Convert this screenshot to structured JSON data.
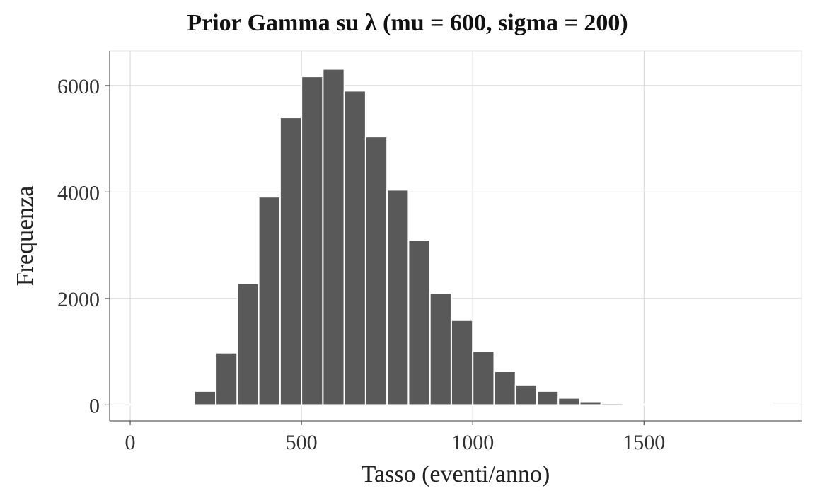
{
  "chart_data": {
    "type": "bar",
    "title": "Prior Gamma su λ (mu = 600, sigma = 200)",
    "xlabel": "Tasso (eventi/anno)",
    "ylabel": "Frequenza",
    "bin_width": 62.5,
    "bins": [
      {
        "x0": 0,
        "x1": 62.5,
        "value": 0
      },
      {
        "x0": 62.5,
        "x1": 125,
        "value": 0
      },
      {
        "x0": 125,
        "x1": 187.5,
        "value": 0
      },
      {
        "x0": 187.5,
        "x1": 250,
        "value": 260
      },
      {
        "x0": 250,
        "x1": 312.5,
        "value": 980
      },
      {
        "x0": 312.5,
        "x1": 375,
        "value": 2280
      },
      {
        "x0": 375,
        "x1": 437.5,
        "value": 3910
      },
      {
        "x0": 437.5,
        "x1": 500,
        "value": 5400
      },
      {
        "x0": 500,
        "x1": 562.5,
        "value": 6170
      },
      {
        "x0": 562.5,
        "x1": 625,
        "value": 6310
      },
      {
        "x0": 625,
        "x1": 687.5,
        "value": 5900
      },
      {
        "x0": 687.5,
        "x1": 750,
        "value": 5040
      },
      {
        "x0": 750,
        "x1": 812.5,
        "value": 4040
      },
      {
        "x0": 812.5,
        "x1": 875,
        "value": 3100
      },
      {
        "x0": 875,
        "x1": 937.5,
        "value": 2100
      },
      {
        "x0": 937.5,
        "x1": 1000,
        "value": 1590
      },
      {
        "x0": 1000,
        "x1": 1062.5,
        "value": 1010
      },
      {
        "x0": 1062.5,
        "x1": 1125,
        "value": 630
      },
      {
        "x0": 1125,
        "x1": 1187.5,
        "value": 380
      },
      {
        "x0": 1187.5,
        "x1": 1250,
        "value": 260
      },
      {
        "x0": 1250,
        "x1": 1312.5,
        "value": 130
      },
      {
        "x0": 1312.5,
        "x1": 1375,
        "value": 65
      },
      {
        "x0": 1375,
        "x1": 1437.5,
        "value": 30
      },
      {
        "x0": 1437.5,
        "x1": 1500,
        "value": 10
      },
      {
        "x0": 1500,
        "x1": 1562.5,
        "value": 5
      },
      {
        "x0": 1562.5,
        "x1": 1625,
        "value": 3
      },
      {
        "x0": 1625,
        "x1": 1687.5,
        "value": 2
      },
      {
        "x0": 1687.5,
        "x1": 1750,
        "value": 1
      },
      {
        "x0": 1750,
        "x1": 1812.5,
        "value": 1
      },
      {
        "x0": 1812.5,
        "x1": 1875,
        "value": 1
      }
    ],
    "xlim": [
      -60,
      1960
    ],
    "ylim": [
      -300,
      6650
    ],
    "xticks": [
      "0",
      "500",
      "1000",
      "1500"
    ],
    "yticks": [
      "0",
      "2000",
      "4000",
      "6000"
    ],
    "grid": true,
    "legend": "none",
    "bar_color": "#595959",
    "grid_color": "#d4d4d4"
  }
}
